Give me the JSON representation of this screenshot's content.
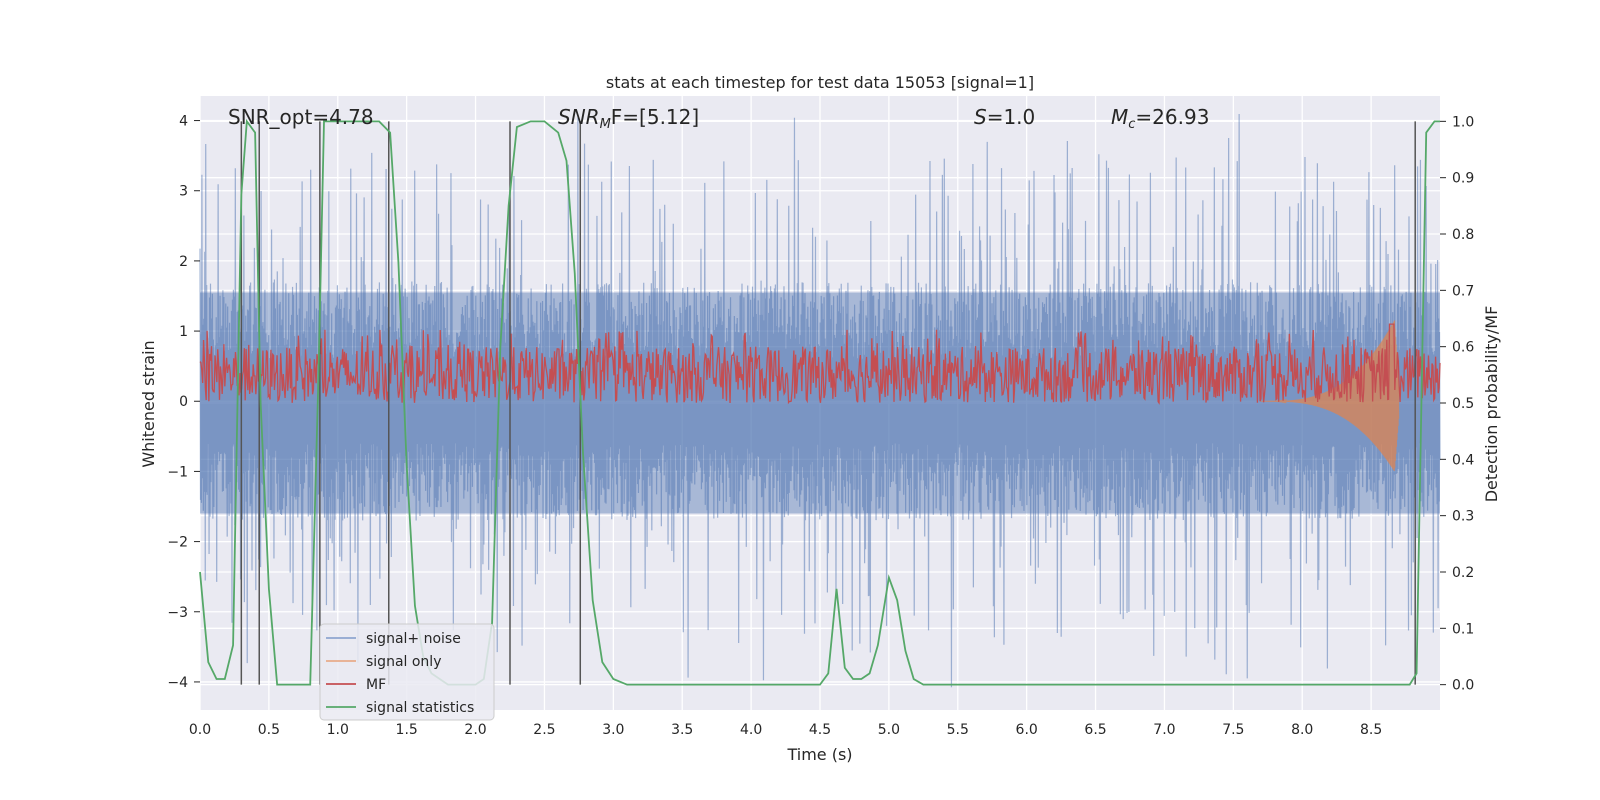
{
  "chart_data": {
    "type": "line",
    "title": "stats at each timestep for test data 15053 [signal=1]",
    "xlabel": "Time (s)",
    "ylabel": "Whitened strain",
    "y2label": "Detection probability/MF",
    "xlim": [
      0,
      9.0
    ],
    "ylim": [
      -4.4,
      4.35
    ],
    "y2lim": [
      -0.045,
      1.045
    ],
    "x_ticks": [
      "0.0",
      "0.5",
      "1.0",
      "1.5",
      "2.0",
      "2.5",
      "3.0",
      "3.5",
      "4.0",
      "4.5",
      "5.0",
      "5.5",
      "6.0",
      "6.5",
      "7.0",
      "7.5",
      "8.0",
      "8.5"
    ],
    "y_ticks": [
      "4",
      "3",
      "2",
      "1",
      "0",
      "−1",
      "−2",
      "−3",
      "−4"
    ],
    "y2_ticks": [
      "1.0",
      "0.9",
      "0.8",
      "0.7",
      "0.6",
      "0.5",
      "0.4",
      "0.3",
      "0.2",
      "0.1",
      "0.0"
    ],
    "grid": true,
    "legend_position": "lower-left",
    "annotations": {
      "snr_opt": "SNR_opt=4.78",
      "snr_mf_base": "SNR",
      "snr_mf_sub": "M",
      "snr_mf_rest": "F=[5.12]",
      "s_base": "S",
      "s_rest": "=1.0",
      "mc_base": "M",
      "mc_sub": "c",
      "mc_rest": "=26.93"
    },
    "series": [
      {
        "name": "signal+ noise",
        "color": "#4c72b0",
        "axis": "left",
        "note": "dense noise band, roughly ±1.6 with spikes up to ±4"
      },
      {
        "name": "signal only",
        "color": "#dd8452",
        "axis": "left",
        "note": "chirp growing near t≈8.0–8.7 s, peak ≈ 1.15 / −1.0"
      },
      {
        "name": "MF",
        "color": "#c44e52",
        "axis": "right",
        "note": "fluctuates ~0.5–0.62, peak ≈ 0.65 at t≈8.65"
      },
      {
        "name": "signal statistics",
        "color": "#55a868",
        "axis": "right",
        "x": [
          0,
          0.06,
          0.12,
          0.18,
          0.24,
          0.3,
          0.34,
          0.4,
          0.44,
          0.5,
          0.56,
          0.62,
          0.7,
          0.8,
          0.86,
          0.9,
          0.95,
          1.0,
          1.1,
          1.2,
          1.3,
          1.38,
          1.44,
          1.5,
          1.56,
          1.62,
          1.68,
          1.74,
          1.8,
          1.9,
          2.0,
          2.06,
          2.12,
          2.18,
          2.24,
          2.3,
          2.4,
          2.5,
          2.6,
          2.66,
          2.72,
          2.78,
          2.85,
          2.92,
          3.0,
          3.1,
          3.5,
          4.0,
          4.5,
          4.56,
          4.62,
          4.68,
          4.74,
          4.8,
          4.86,
          4.92,
          5.0,
          5.06,
          5.12,
          5.18,
          5.25,
          5.35,
          6.0,
          7.0,
          8.0,
          8.5,
          8.78,
          8.83,
          8.9,
          8.96,
          9.0
        ],
        "values": [
          0.2,
          0.04,
          0.01,
          0.01,
          0.07,
          0.87,
          1.0,
          0.98,
          0.5,
          0.17,
          0.0,
          0.0,
          0.0,
          0.0,
          0.55,
          1.0,
          1.0,
          1.0,
          1.0,
          1.0,
          1.0,
          0.98,
          0.75,
          0.39,
          0.14,
          0.05,
          0.02,
          0.01,
          0.0,
          0.0,
          0.0,
          0.01,
          0.11,
          0.6,
          0.85,
          0.99,
          1.0,
          1.0,
          0.98,
          0.93,
          0.73,
          0.41,
          0.15,
          0.04,
          0.01,
          0.0,
          0.0,
          0.0,
          0.0,
          0.02,
          0.17,
          0.03,
          0.01,
          0.01,
          0.02,
          0.07,
          0.19,
          0.15,
          0.06,
          0.01,
          0.0,
          0.0,
          0.0,
          0.0,
          0.0,
          0.0,
          0.0,
          0.02,
          0.98,
          1.0,
          1.0
        ]
      }
    ],
    "vlines_x": [
      0.3,
      0.43,
      0.87,
      1.37,
      2.25,
      2.76,
      8.82
    ]
  }
}
